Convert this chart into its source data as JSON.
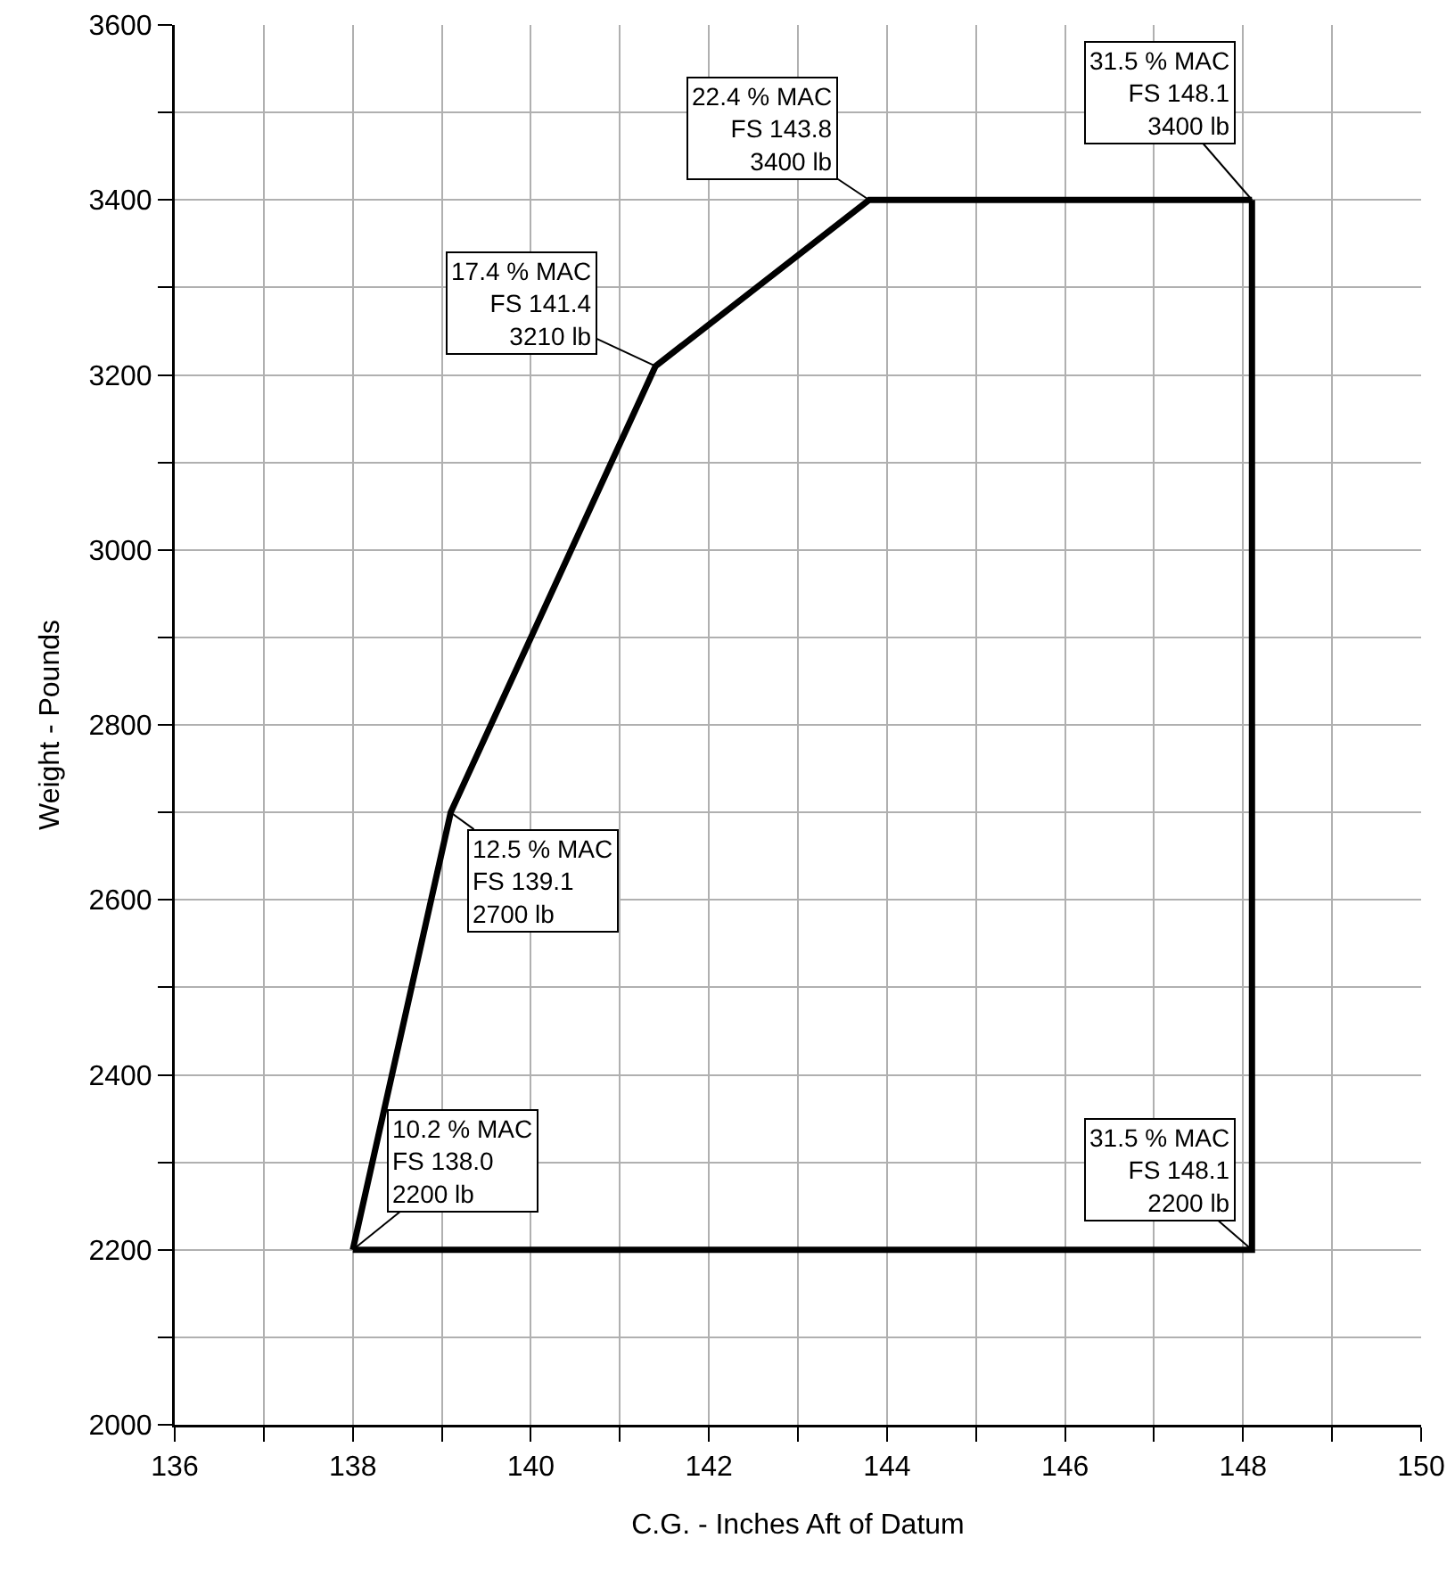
{
  "chart_data": {
    "type": "line",
    "xlabel": "C.G. - Inches Aft of Datum",
    "ylabel": "Weight - Pounds",
    "series": [
      {
        "color": "#000000",
        "x": [
          138.0,
          139.1,
          141.4,
          143.8,
          148.1
        ],
        "values": [
          2200,
          2700,
          3210,
          3400,
          3400
        ]
      },
      {
        "color": "#000000",
        "x": [
          138.0,
          148.1,
          148.1
        ],
        "values": [
          2200,
          2200,
          3400
        ]
      }
    ],
    "xlim": [
      136,
      150
    ],
    "xticks": [
      136,
      {
        "value": 137,
        "label": null
      },
      138,
      {
        "value": 139,
        "label": null
      },
      140,
      {
        "value": 141,
        "label": null
      },
      142,
      {
        "value": 143,
        "label": null
      },
      144,
      {
        "value": 145,
        "label": null
      },
      146,
      {
        "value": 147,
        "label": null
      },
      148,
      {
        "value": 149,
        "label": null
      },
      150
    ],
    "ylim": [
      2000,
      3600
    ],
    "yticks": [
      2000,
      {
        "value": 2100,
        "label": null
      },
      2200,
      {
        "value": 2300,
        "label": null
      },
      2400,
      {
        "value": 2500,
        "label": null
      },
      2600,
      {
        "value": 2700,
        "label": null
      },
      2800,
      {
        "value": 2900,
        "label": null
      },
      3000,
      {
        "value": 3100,
        "label": null
      },
      3200,
      {
        "value": 3300,
        "label": null
      },
      3400,
      {
        "value": 3500,
        "label": null
      },
      3600
    ],
    "grid": true,
    "marker": "none",
    "line_style": "solid",
    "annotations": [
      {
        "text": "10.2 % MAC\nFS 138.0\n2200 lb",
        "x": 138.0,
        "y": 2200
      },
      {
        "text": "12.5 % MAC\nFS 139.1\n2700 lb",
        "x": 139.1,
        "y": 2700
      },
      {
        "text": "17.4 % MAC\nFS 141.4\n3210 lb",
        "x": 141.4,
        "y": 3210
      },
      {
        "text": "22.4 % MAC\nFS 143.8\n3400 lb",
        "x": 143.8,
        "y": 3400
      },
      {
        "text": "31.5 % MAC\nFS 148.1\n3400 lb",
        "x": 148.1,
        "y": 3400
      },
      {
        "text": "31.5 % MAC\nFS 148.1\n2200 lb",
        "x": 148.1,
        "y": 2200
      }
    ]
  }
}
